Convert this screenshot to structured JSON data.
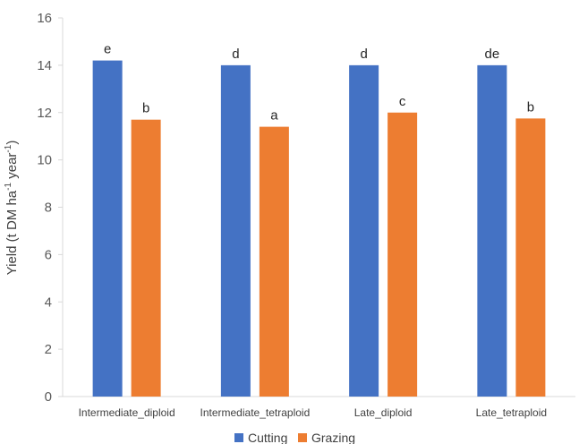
{
  "chart_data": {
    "type": "bar",
    "categories": [
      "Intermediate_diploid",
      "Intermediate_tetraploid",
      "Late_diploid",
      "Late_tetraploid"
    ],
    "series": [
      {
        "name": "Cutting",
        "values": [
          14.2,
          14.0,
          14.0,
          14.0
        ],
        "labels": [
          "e",
          "d",
          "d",
          "de"
        ]
      },
      {
        "name": "Grazing",
        "values": [
          11.7,
          11.4,
          12.0,
          11.75
        ],
        "labels": [
          "b",
          "a",
          "c",
          "b"
        ]
      }
    ],
    "ylabel_parts": [
      "Yield (t DM ha",
      "-1",
      " year",
      "-1",
      ")"
    ],
    "ylim": [
      0,
      16
    ],
    "yticks": [
      0,
      2,
      4,
      6,
      8,
      10,
      12,
      14,
      16
    ],
    "grid": false,
    "legend_position": "bottom",
    "colors": {
      "Cutting": "#4472C4",
      "Grazing": "#ED7D31",
      "axis": "#D9D9D9"
    }
  }
}
